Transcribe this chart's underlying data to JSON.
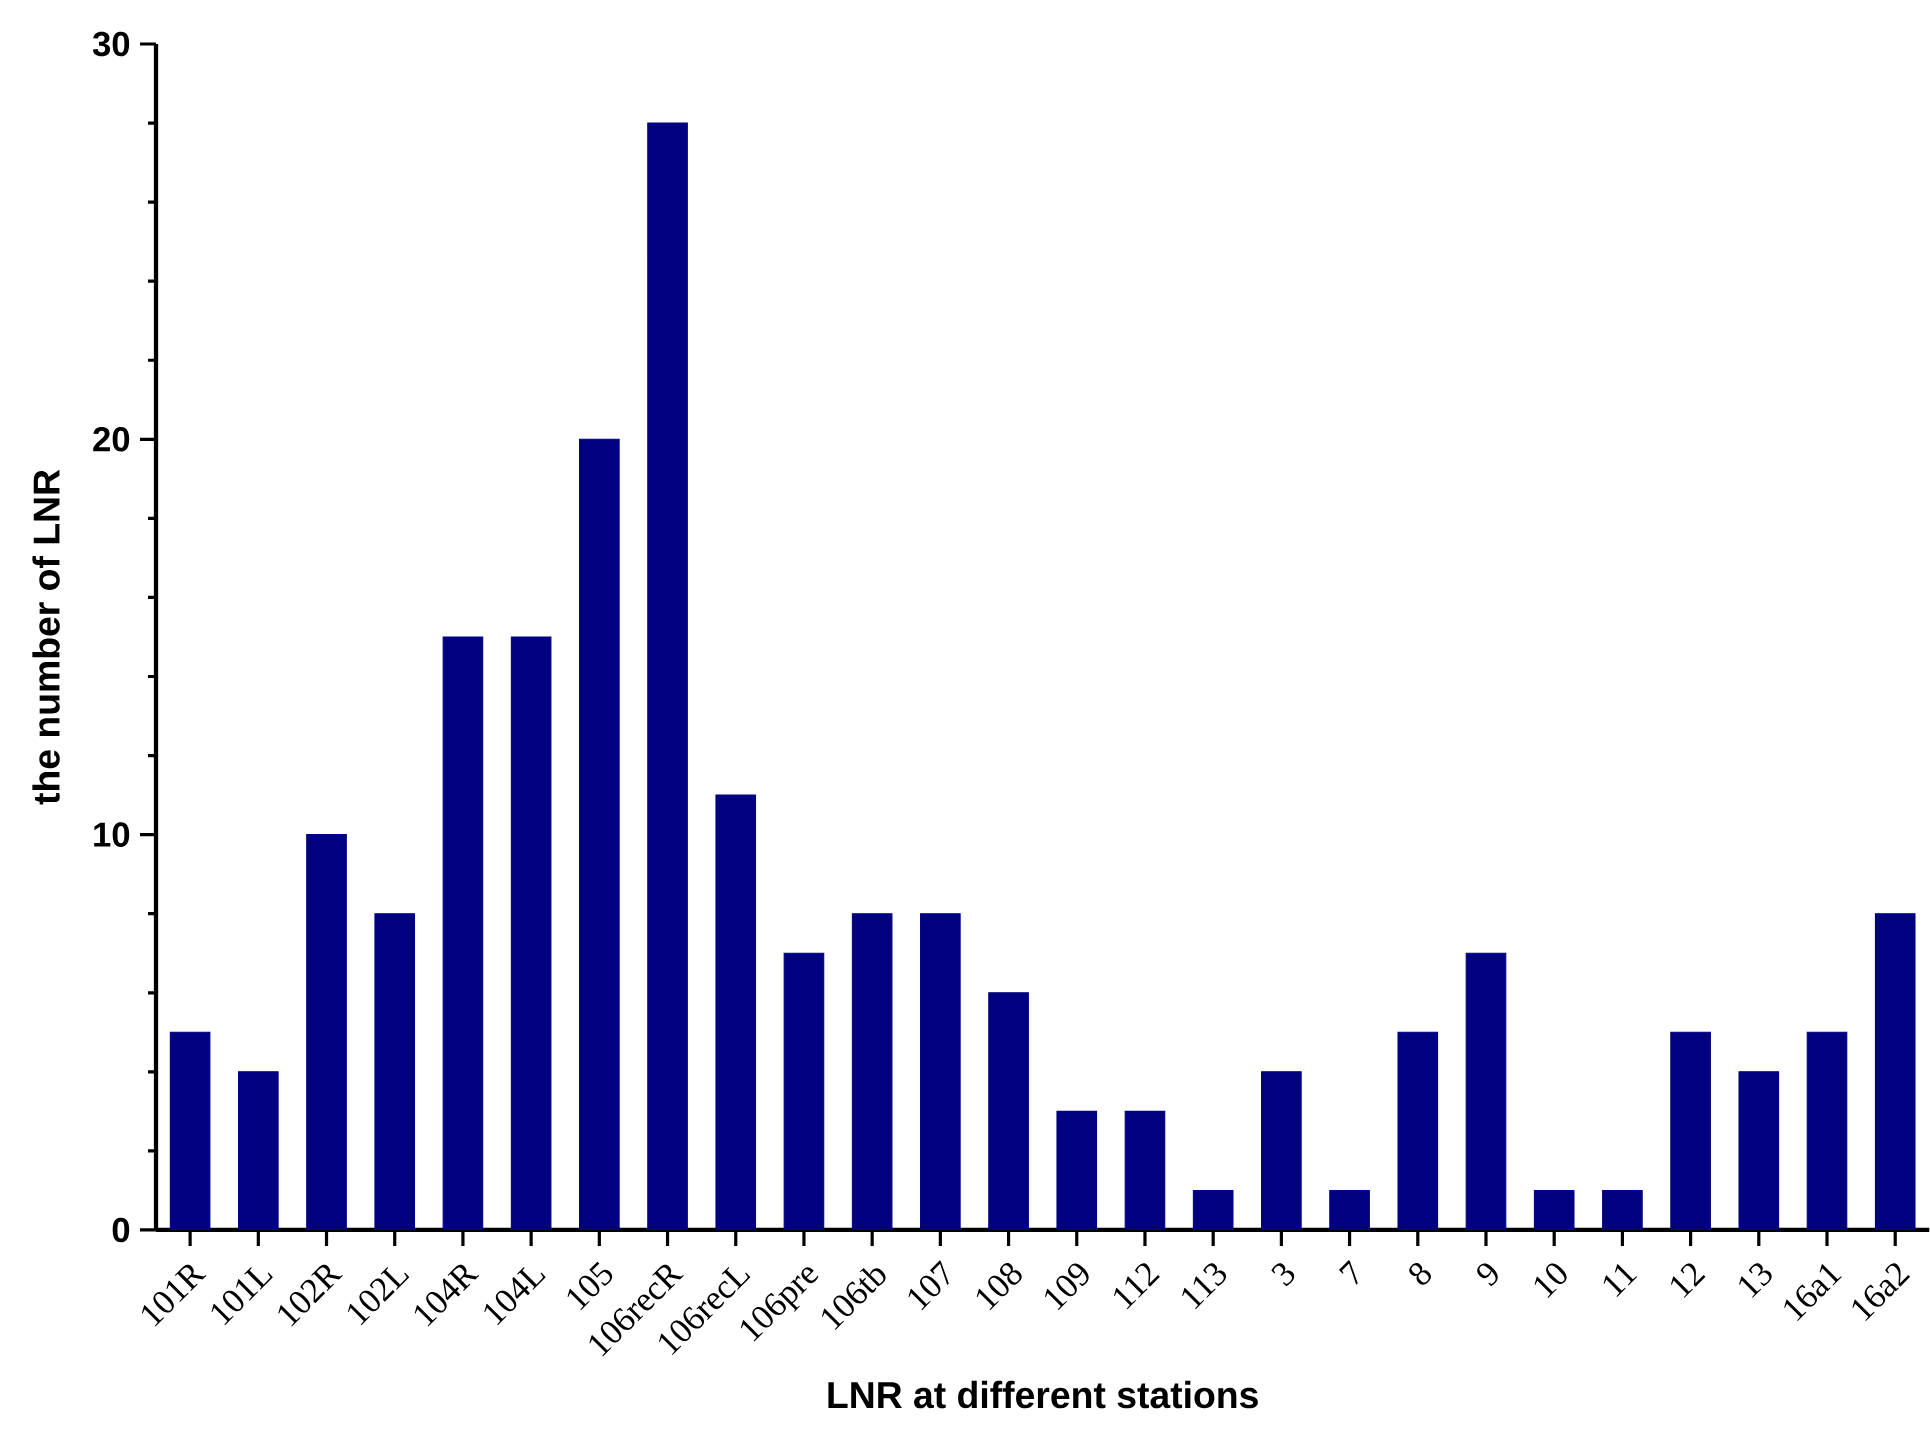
{
  "chart_data": {
    "type": "bar",
    "xlabel": "LNR at different stations",
    "ylabel": "the number of LNR",
    "categories": [
      "101R",
      "101L",
      "102R",
      "102L",
      "104R",
      "104L",
      "105",
      "106recR",
      "106recL",
      "106pre",
      "106tb",
      "107",
      "108",
      "109",
      "112",
      "113",
      "3",
      "7",
      "8",
      "9",
      "10",
      "11",
      "12",
      "13",
      "16a1",
      "16a2"
    ],
    "values": [
      5,
      4,
      10,
      8,
      15,
      15,
      20,
      28,
      11,
      7,
      8,
      8,
      6,
      3,
      3,
      1,
      4,
      1,
      5,
      7,
      1,
      1,
      5,
      4,
      5,
      8
    ],
    "color": "#000080",
    "ylim": [
      0,
      30
    ],
    "yticks": [
      0,
      10,
      20,
      30
    ],
    "grid": false
  }
}
